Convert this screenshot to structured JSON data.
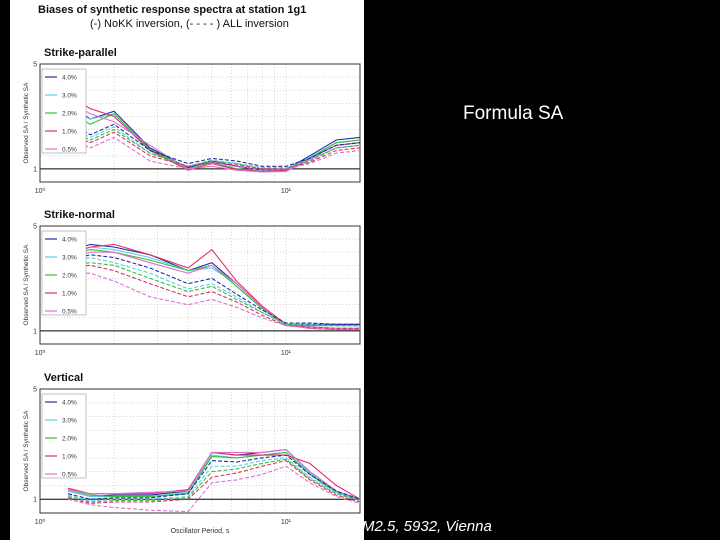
{
  "figure": {
    "title": "Biases of synthetic response spectra at station 1g1",
    "subtitle": "(-) NoKK inversion, (- - - - ) ALL inversion"
  },
  "side_label": "Formula SA",
  "footer": "M2.5, 5932, Vienna",
  "legend_colors": [
    "#1d2fa8",
    "#5bd0e8",
    "#35c035",
    "#e0306a",
    "#e070d0"
  ],
  "chart_data": [
    {
      "type": "line",
      "title": "Strike-parallel",
      "ylabel": "Observed SA / Synthetic SA",
      "xlabel": "",
      "xscale": "log",
      "xlim": [
        1,
        20
      ],
      "ylim": [
        0.5,
        5
      ],
      "x_tick_labels": [
        "10⁰",
        "10¹"
      ],
      "y_tick_labels": [
        "5",
        "1"
      ],
      "legend": [
        "4.0%",
        "3.0%",
        "2.0%",
        "1.0%",
        "0.5%"
      ],
      "x": [
        1.3,
        1.6,
        2.0,
        2.8,
        4.0,
        5.0,
        6.3,
        8.0,
        10.0,
        12.5,
        16.0,
        20.0
      ],
      "series": [
        {
          "name": "4.0%",
          "style": "solid",
          "values": [
            3.5,
            2.9,
            3.2,
            1.8,
            1.05,
            1.3,
            1.1,
            0.95,
            0.98,
            1.5,
            2.1,
            2.2
          ]
        },
        {
          "name": "3.0%",
          "style": "solid",
          "values": [
            3.3,
            2.9,
            3.1,
            1.7,
            1.0,
            1.2,
            1.0,
            0.92,
            0.95,
            1.45,
            2.0,
            2.1
          ]
        },
        {
          "name": "2.0%",
          "style": "solid",
          "values": [
            3.2,
            2.7,
            3.1,
            1.75,
            1.0,
            1.25,
            1.0,
            0.9,
            0.92,
            1.4,
            2.0,
            2.1
          ]
        },
        {
          "name": "1.0%",
          "style": "solid",
          "values": [
            3.8,
            3.3,
            3.0,
            1.7,
            0.95,
            1.2,
            0.98,
            0.9,
            0.95,
            1.4,
            1.9,
            2.0
          ]
        },
        {
          "name": "0.5%",
          "style": "solid",
          "values": [
            3.6,
            3.1,
            2.8,
            1.9,
            1.0,
            1.1,
            0.95,
            0.88,
            0.9,
            1.35,
            1.8,
            1.9
          ]
        },
        {
          "name": "4.0%",
          "style": "dashed",
          "values": [
            2.8,
            2.3,
            2.7,
            1.7,
            1.2,
            1.4,
            1.3,
            1.1,
            1.1,
            1.4,
            1.9,
            2.0
          ]
        },
        {
          "name": "3.0%",
          "style": "dashed",
          "values": [
            2.6,
            2.2,
            2.6,
            1.6,
            1.1,
            1.35,
            1.2,
            1.05,
            1.05,
            1.35,
            1.8,
            1.9
          ]
        },
        {
          "name": "2.0%",
          "style": "dashed",
          "values": [
            2.5,
            2.1,
            2.5,
            1.6,
            1.1,
            1.3,
            1.2,
            1.0,
            1.0,
            1.3,
            1.8,
            1.9
          ]
        },
        {
          "name": "1.0%",
          "style": "dashed",
          "values": [
            2.4,
            2.0,
            2.4,
            1.5,
            1.1,
            1.25,
            1.15,
            1.0,
            1.0,
            1.25,
            1.7,
            1.8
          ]
        },
        {
          "name": "0.5%",
          "style": "dashed",
          "values": [
            2.2,
            1.8,
            2.2,
            1.3,
            1.0,
            1.2,
            1.1,
            0.95,
            1.0,
            1.2,
            1.6,
            1.7
          ]
        }
      ]
    },
    {
      "type": "line",
      "title": "Strike-normal",
      "ylabel": "Observed SA / Synthetic SA",
      "xlabel": "",
      "xscale": "log",
      "xlim": [
        1,
        20
      ],
      "ylim": [
        0.5,
        5
      ],
      "x_tick_labels": [
        "10⁰",
        "10¹"
      ],
      "y_tick_labels": [
        "5",
        "1"
      ],
      "legend": [
        "4.0%",
        "3.0%",
        "2.0%",
        "1.0%",
        "0.5%"
      ],
      "x": [
        1.3,
        1.6,
        2.0,
        2.8,
        4.0,
        5.0,
        6.3,
        8.0,
        10.0,
        12.5,
        16.0,
        20.0
      ],
      "series": [
        {
          "name": "4.0%",
          "style": "solid",
          "values": [
            4.0,
            4.3,
            4.2,
            3.9,
            3.3,
            3.6,
            2.8,
            1.9,
            1.25,
            1.25,
            1.25,
            1.25
          ]
        },
        {
          "name": "3.0%",
          "style": "solid",
          "values": [
            3.9,
            4.2,
            4.1,
            3.8,
            3.3,
            3.4,
            2.8,
            1.9,
            1.25,
            1.2,
            1.2,
            1.2
          ]
        },
        {
          "name": "2.0%",
          "style": "solid",
          "values": [
            3.9,
            4.1,
            4.0,
            3.7,
            3.3,
            3.5,
            2.7,
            1.85,
            1.2,
            1.2,
            1.2,
            1.2
          ]
        },
        {
          "name": "1.0%",
          "style": "solid",
          "values": [
            3.9,
            4.2,
            4.3,
            3.9,
            3.4,
            4.1,
            2.9,
            1.95,
            1.25,
            1.1,
            1.05,
            1.05
          ]
        },
        {
          "name": "0.5%",
          "style": "solid",
          "values": [
            3.8,
            4.0,
            4.0,
            3.6,
            3.2,
            3.5,
            2.8,
            1.9,
            1.2,
            1.15,
            1.1,
            1.1
          ]
        },
        {
          "name": "4.0%",
          "style": "dashed",
          "values": [
            3.7,
            3.9,
            3.8,
            3.4,
            2.8,
            3.0,
            2.4,
            1.8,
            1.3,
            1.3,
            1.25,
            1.25
          ]
        },
        {
          "name": "3.0%",
          "style": "dashed",
          "values": [
            3.6,
            3.8,
            3.6,
            3.2,
            2.6,
            2.8,
            2.3,
            1.7,
            1.25,
            1.25,
            1.2,
            1.2
          ]
        },
        {
          "name": "2.0%",
          "style": "dashed",
          "values": [
            3.5,
            3.6,
            3.5,
            3.0,
            2.5,
            2.7,
            2.2,
            1.7,
            1.25,
            1.2,
            1.2,
            1.2
          ]
        },
        {
          "name": "1.0%",
          "style": "dashed",
          "values": [
            3.4,
            3.5,
            3.3,
            2.8,
            2.3,
            2.5,
            2.1,
            1.6,
            1.2,
            1.15,
            1.1,
            1.1
          ]
        },
        {
          "name": "0.5%",
          "style": "dashed",
          "values": [
            3.2,
            3.2,
            2.9,
            2.3,
            2.0,
            2.2,
            1.9,
            1.5,
            1.2,
            1.1,
            1.05,
            1.05
          ]
        }
      ]
    },
    {
      "type": "line",
      "title": "Vertical",
      "ylabel": "Observed SA / Synthetic SA",
      "xlabel": "Oscillator Period, s",
      "xscale": "log",
      "xlim": [
        1,
        20
      ],
      "ylim": [
        0.5,
        5
      ],
      "x_tick_labels": [
        "10⁰",
        "10¹"
      ],
      "y_tick_labels": [
        "5",
        "1"
      ],
      "legend": [
        "4.0%",
        "3.0%",
        "2.0%",
        "1.0%",
        "0.5%"
      ],
      "x": [
        1.3,
        1.6,
        2.0,
        2.8,
        4.0,
        5.0,
        6.3,
        8.0,
        10.0,
        12.5,
        16.0,
        20.0
      ],
      "series": [
        {
          "name": "4.0%",
          "style": "solid",
          "values": [
            1.3,
            1.1,
            1.15,
            1.15,
            1.3,
            2.7,
            2.6,
            2.7,
            2.8,
            2.0,
            1.3,
            0.95
          ]
        },
        {
          "name": "3.0%",
          "style": "solid",
          "values": [
            1.3,
            1.1,
            1.1,
            1.1,
            1.25,
            2.6,
            2.5,
            2.6,
            2.7,
            1.95,
            1.25,
            0.95
          ]
        },
        {
          "name": "2.0%",
          "style": "solid",
          "values": [
            1.35,
            1.15,
            1.1,
            1.1,
            1.2,
            2.55,
            2.5,
            2.6,
            2.7,
            1.9,
            1.25,
            0.95
          ]
        },
        {
          "name": "1.0%",
          "style": "solid",
          "values": [
            1.4,
            1.2,
            1.2,
            1.2,
            1.35,
            2.7,
            2.6,
            2.6,
            2.6,
            2.3,
            1.5,
            1.0
          ]
        },
        {
          "name": "0.5%",
          "style": "solid",
          "values": [
            1.35,
            1.2,
            1.2,
            1.25,
            1.3,
            2.7,
            2.7,
            2.7,
            2.8,
            2.0,
            1.3,
            1.0
          ]
        },
        {
          "name": "4.0%",
          "style": "dashed",
          "values": [
            1.2,
            1.0,
            1.05,
            1.05,
            1.2,
            2.4,
            2.35,
            2.5,
            2.6,
            1.9,
            1.3,
            1.0
          ]
        },
        {
          "name": "3.0%",
          "style": "dashed",
          "values": [
            1.15,
            0.95,
            1.0,
            1.0,
            1.1,
            2.2,
            2.2,
            2.4,
            2.5,
            1.8,
            1.25,
            0.95
          ]
        },
        {
          "name": "2.0%",
          "style": "dashed",
          "values": [
            1.1,
            0.9,
            0.95,
            0.95,
            1.05,
            2.0,
            2.1,
            2.3,
            2.45,
            1.75,
            1.2,
            0.95
          ]
        },
        {
          "name": "1.0%",
          "style": "dashed",
          "values": [
            1.05,
            0.85,
            0.9,
            0.9,
            1.0,
            1.8,
            1.95,
            2.2,
            2.4,
            1.7,
            1.15,
            0.9
          ]
        },
        {
          "name": "0.5%",
          "style": "dashed",
          "values": [
            1.0,
            0.8,
            0.7,
            0.6,
            0.55,
            1.6,
            1.7,
            1.9,
            2.2,
            1.6,
            1.1,
            0.85
          ]
        }
      ]
    }
  ]
}
